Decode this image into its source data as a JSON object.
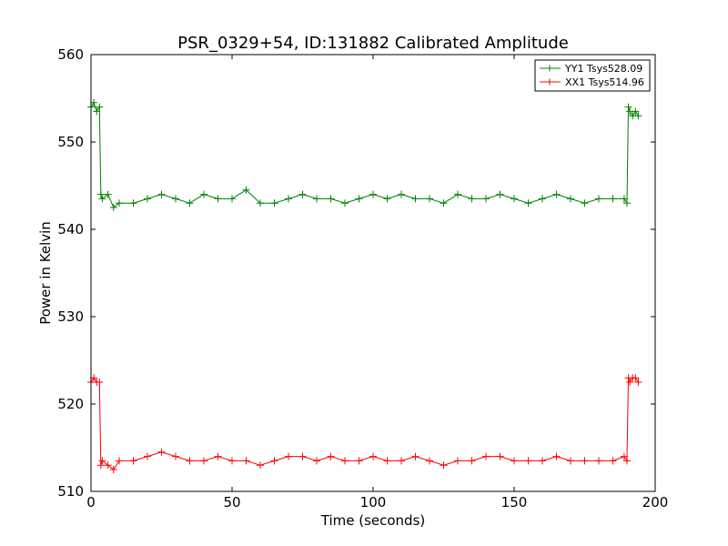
{
  "chart_data": {
    "type": "line",
    "title": "PSR_0329+54, ID:131882 Calibrated Amplitude",
    "xlabel": "Time (seconds)",
    "ylabel": "Power in Kelvin",
    "xlim": [
      0,
      200
    ],
    "ylim": [
      510,
      560
    ],
    "xticks": [
      0,
      50,
      100,
      150,
      200
    ],
    "yticks": [
      510,
      520,
      530,
      540,
      550,
      560
    ],
    "grid": false,
    "legend_position": "top-right",
    "series": [
      {
        "name": "YY1 Tsys528.09",
        "color": "#008000",
        "marker": "+",
        "x": [
          0,
          1,
          2,
          3,
          3.5,
          4,
          6,
          8,
          10,
          15,
          20,
          25,
          30,
          35,
          40,
          45,
          50,
          55,
          60,
          65,
          70,
          75,
          80,
          85,
          90,
          95,
          100,
          105,
          110,
          115,
          120,
          125,
          130,
          135,
          140,
          145,
          150,
          155,
          160,
          165,
          170,
          175,
          180,
          185,
          189,
          190,
          190.5,
          191,
          192,
          193,
          194
        ],
        "y": [
          554,
          554.5,
          553.5,
          554,
          544,
          543.5,
          544,
          542.5,
          543,
          543,
          543.5,
          544,
          543.5,
          543,
          544,
          543.5,
          543.5,
          544.5,
          543,
          543,
          543.5,
          544,
          543.5,
          543.5,
          543,
          543.5,
          544,
          543.5,
          544,
          543.5,
          543.5,
          543,
          544,
          543.5,
          543.5,
          544,
          543.5,
          543,
          543.5,
          544,
          543.5,
          543,
          543.5,
          543.5,
          543.5,
          543,
          554,
          553.5,
          553,
          553.5,
          553
        ]
      },
      {
        "name": "XX1 Tsys514.96",
        "color": "#ff0000",
        "marker": "+",
        "x": [
          0,
          1,
          2,
          3,
          3.5,
          4,
          6,
          8,
          10,
          15,
          20,
          25,
          30,
          35,
          40,
          45,
          50,
          55,
          60,
          65,
          70,
          75,
          80,
          85,
          90,
          95,
          100,
          105,
          110,
          115,
          120,
          125,
          130,
          135,
          140,
          145,
          150,
          155,
          160,
          165,
          170,
          175,
          180,
          185,
          189,
          190,
          190.5,
          191,
          192,
          193,
          194
        ],
        "y": [
          522.5,
          523,
          522.5,
          522.5,
          513,
          513.5,
          513,
          512.5,
          513.5,
          513.5,
          514,
          514.5,
          514,
          513.5,
          513.5,
          514,
          513.5,
          513.5,
          513,
          513.5,
          514,
          514,
          513.5,
          514,
          513.5,
          513.5,
          514,
          513.5,
          513.5,
          514,
          513.5,
          513,
          513.5,
          513.5,
          514,
          514,
          513.5,
          513.5,
          513.5,
          514,
          513.5,
          513.5,
          513.5,
          513.5,
          514,
          513.5,
          523,
          522.5,
          523,
          523,
          522.5
        ]
      }
    ]
  }
}
